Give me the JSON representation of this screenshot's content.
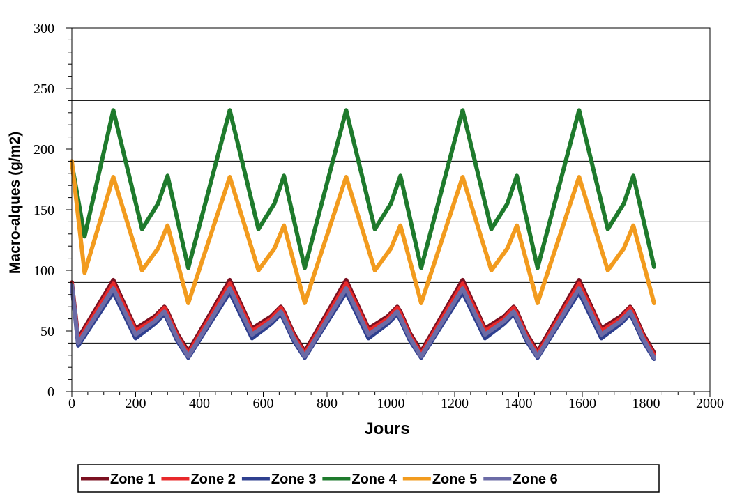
{
  "chart_data": {
    "type": "line",
    "title": "",
    "xlabel": "Jours",
    "ylabel": "Macro-alques (g/m2)",
    "xlim": [
      0,
      2000
    ],
    "ylim": [
      0,
      300
    ],
    "x_ticks": [
      "0",
      "200",
      "400",
      "600",
      "800",
      "1000",
      "1200",
      "1400",
      "1600",
      "1800",
      "2000"
    ],
    "y_ticks": [
      "0",
      "50",
      "100",
      "150",
      "200",
      "250",
      "300"
    ],
    "gridlines_y": [
      40,
      90,
      140,
      190,
      240
    ],
    "legend_position": "bottom",
    "series": [
      {
        "name": "Zone 1",
        "color": "#7b1020",
        "x": [
          0,
          20,
          130,
          200,
          260,
          290,
          300,
          330,
          365,
          495,
          565,
          625,
          655,
          665,
          695,
          730,
          860,
          930,
          990,
          1020,
          1030,
          1060,
          1095,
          1225,
          1295,
          1355,
          1385,
          1395,
          1425,
          1460,
          1590,
          1660,
          1720,
          1750,
          1760,
          1790,
          1825
        ],
        "values": [
          90,
          44,
          92,
          52,
          62,
          70,
          66,
          48,
          33,
          92,
          52,
          62,
          70,
          66,
          48,
          33,
          92,
          52,
          62,
          70,
          66,
          48,
          33,
          92,
          52,
          62,
          70,
          66,
          48,
          33,
          92,
          52,
          62,
          70,
          66,
          48,
          32
        ]
      },
      {
        "name": "Zone 2",
        "color": "#e8282a",
        "x": [
          0,
          20,
          130,
          200,
          260,
          290,
          300,
          330,
          365,
          495,
          565,
          625,
          655,
          665,
          695,
          730,
          860,
          930,
          990,
          1020,
          1030,
          1060,
          1095,
          1225,
          1295,
          1355,
          1385,
          1395,
          1425,
          1460,
          1590,
          1660,
          1720,
          1750,
          1760,
          1790,
          1825
        ],
        "values": [
          89,
          42,
          89,
          50,
          60,
          69,
          64,
          46,
          31,
          89,
          50,
          60,
          69,
          64,
          46,
          31,
          89,
          50,
          60,
          69,
          64,
          46,
          31,
          89,
          50,
          60,
          69,
          64,
          46,
          31,
          89,
          50,
          60,
          69,
          64,
          46,
          30
        ]
      },
      {
        "name": "Zone 3",
        "color": "#2e3f8f",
        "x": [
          0,
          20,
          130,
          200,
          260,
          290,
          300,
          330,
          365,
          495,
          565,
          625,
          655,
          665,
          695,
          730,
          860,
          930,
          990,
          1020,
          1030,
          1060,
          1095,
          1225,
          1295,
          1355,
          1385,
          1395,
          1425,
          1460,
          1590,
          1660,
          1720,
          1750,
          1760,
          1790,
          1825
        ],
        "values": [
          88,
          38,
          82,
          44,
          56,
          64,
          59,
          42,
          28,
          82,
          44,
          56,
          64,
          59,
          42,
          28,
          82,
          44,
          56,
          64,
          59,
          42,
          28,
          82,
          44,
          56,
          64,
          59,
          42,
          28,
          82,
          44,
          56,
          64,
          59,
          42,
          27
        ]
      },
      {
        "name": "Zone 4",
        "color": "#1e7a2c",
        "x": [
          0,
          40,
          130,
          220,
          270,
          300,
          365,
          495,
          585,
          635,
          665,
          730,
          860,
          950,
          1000,
          1030,
          1095,
          1225,
          1315,
          1365,
          1395,
          1460,
          1590,
          1680,
          1730,
          1760,
          1825
        ],
        "values": [
          188,
          128,
          232,
          134,
          155,
          178,
          102,
          232,
          134,
          155,
          178,
          102,
          232,
          134,
          155,
          178,
          102,
          232,
          134,
          155,
          178,
          102,
          232,
          134,
          155,
          178,
          103
        ]
      },
      {
        "name": "Zone 5",
        "color": "#f29b1e",
        "x": [
          0,
          40,
          130,
          220,
          270,
          300,
          365,
          495,
          585,
          635,
          665,
          730,
          860,
          950,
          1000,
          1030,
          1095,
          1225,
          1315,
          1365,
          1395,
          1460,
          1590,
          1680,
          1730,
          1760,
          1825
        ],
        "values": [
          190,
          98,
          177,
          100,
          118,
          137,
          73,
          177,
          100,
          118,
          137,
          73,
          177,
          100,
          118,
          137,
          73,
          177,
          100,
          118,
          137,
          73,
          177,
          100,
          118,
          137,
          73
        ]
      },
      {
        "name": "Zone 6",
        "color": "#6b6ba6",
        "x": [
          0,
          20,
          130,
          200,
          260,
          290,
          300,
          330,
          365,
          495,
          565,
          625,
          655,
          665,
          695,
          730,
          860,
          930,
          990,
          1020,
          1030,
          1060,
          1095,
          1225,
          1295,
          1355,
          1385,
          1395,
          1425,
          1460,
          1590,
          1660,
          1720,
          1750,
          1760,
          1790,
          1825
        ],
        "values": [
          88,
          40,
          85,
          47,
          58,
          66,
          61,
          44,
          29,
          85,
          47,
          58,
          66,
          61,
          44,
          29,
          85,
          47,
          58,
          66,
          61,
          44,
          29,
          85,
          47,
          58,
          66,
          61,
          44,
          29,
          85,
          47,
          58,
          66,
          61,
          44,
          28
        ]
      }
    ]
  }
}
